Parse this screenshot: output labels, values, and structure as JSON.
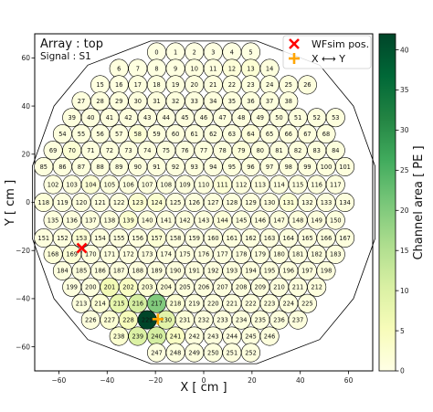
{
  "chart_data": {
    "type": "heatmap",
    "title": "",
    "annotation_title": "Array : top",
    "annotation_subtitle": "Signal : S1",
    "xlabel": "X [ cm ]",
    "ylabel": "Y [ cm ]",
    "xlim": [
      -70,
      70
    ],
    "ylim": [
      -70,
      70
    ],
    "xticks": [
      "−60",
      "−40",
      "−20",
      "0",
      "20",
      "40",
      "60"
    ],
    "xtick_values": [
      -60,
      -40,
      -20,
      0,
      20,
      40,
      60
    ],
    "yticks": [
      "−60",
      "−40",
      "−20",
      "0",
      "20",
      "40",
      "60"
    ],
    "ytick_values": [
      -60,
      -40,
      -20,
      0,
      20,
      40,
      60
    ],
    "colorbar_label": "Channel area [ PE ]",
    "colorbar_range": [
      0,
      42
    ],
    "colorbar_ticks": [
      "0",
      "5",
      "10",
      "15",
      "20",
      "25",
      "30",
      "35",
      "40"
    ],
    "colorbar_tick_values": [
      0,
      5,
      10,
      15,
      20,
      25,
      30,
      35,
      40
    ],
    "colormap": [
      "#ffffe5",
      "#f7fcb9",
      "#d9f0a3",
      "#addd8e",
      "#78c679",
      "#41ab5d",
      "#238443",
      "#006837",
      "#004529"
    ],
    "legend_position": "top-right",
    "legend": [
      {
        "label": "WFsim pos.",
        "marker": "x",
        "color": "#ff0000"
      },
      {
        "label": "X ⟷ Y",
        "marker": "plus",
        "color": "#ffa500"
      }
    ],
    "markers": [
      {
        "name": "WFsim pos.",
        "x": -50.5,
        "y": -19.0
      },
      {
        "name": "X ⟷ Y",
        "x": -19.0,
        "y": -48.5
      }
    ],
    "rows": [
      {
        "y": 62.4,
        "x_start": -19.5,
        "ids": [
          0,
          1,
          2,
          3,
          4,
          5
        ]
      },
      {
        "y": 55.6,
        "x_start": -35.1,
        "ids": [
          6,
          7,
          8,
          9,
          10,
          11,
          12,
          13,
          14
        ]
      },
      {
        "y": 48.8,
        "x_start": -42.9,
        "ids": [
          15,
          16,
          17,
          18,
          19,
          20,
          21,
          22,
          23,
          24,
          25,
          26
        ]
      },
      {
        "y": 42.0,
        "x_start": -50.7,
        "ids": [
          27,
          28,
          29,
          30,
          31,
          32,
          33,
          34,
          35,
          36,
          37,
          38
        ]
      },
      {
        "y": 35.2,
        "x_start": -54.6,
        "ids": [
          39,
          40,
          41,
          42,
          43,
          44,
          45,
          46,
          47,
          48,
          49,
          50,
          51,
          52,
          53
        ]
      },
      {
        "y": 28.4,
        "x_start": -58.5,
        "ids": [
          54,
          55,
          56,
          57,
          58,
          59,
          60,
          61,
          62,
          63,
          64,
          65,
          66,
          67,
          68
        ]
      },
      {
        "y": 21.6,
        "x_start": -62.4,
        "ids": [
          69,
          70,
          71,
          72,
          73,
          74,
          75,
          76,
          77,
          78,
          79,
          80,
          81,
          82,
          83,
          84
        ]
      },
      {
        "y": 14.8,
        "x_start": -66.3,
        "ids": [
          85,
          86,
          87,
          88,
          89,
          90,
          91,
          92,
          93,
          94,
          95,
          96,
          97,
          98,
          99,
          100,
          101
        ]
      },
      {
        "y": 7.4,
        "x_start": -62.4,
        "ids": [
          102,
          103,
          104,
          105,
          106,
          107,
          108,
          109,
          110,
          111,
          112,
          113,
          114,
          115,
          116,
          117
        ]
      },
      {
        "y": 0.0,
        "x_start": -66.3,
        "ids": [
          118,
          119,
          120,
          121,
          122,
          123,
          124,
          125,
          126,
          127,
          128,
          129,
          130,
          131,
          132,
          133,
          134
        ]
      },
      {
        "y": -7.4,
        "x_start": -62.4,
        "ids": [
          135,
          136,
          137,
          138,
          139,
          140,
          141,
          142,
          143,
          144,
          145,
          146,
          147,
          148,
          149,
          150
        ]
      },
      {
        "y": -14.8,
        "x_start": -66.3,
        "ids": [
          151,
          152,
          153,
          154,
          155,
          156,
          157,
          158,
          159,
          160,
          161,
          162,
          163,
          164,
          165,
          166,
          167
        ]
      },
      {
        "y": -21.6,
        "x_start": -62.4,
        "ids": [
          168,
          169,
          170,
          171,
          172,
          173,
          174,
          175,
          176,
          177,
          178,
          179,
          180,
          181,
          182,
          183
        ]
      },
      {
        "y": -28.4,
        "x_start": -58.5,
        "ids": [
          184,
          185,
          186,
          187,
          188,
          189,
          190,
          191,
          192,
          193,
          194,
          195,
          196,
          197,
          198
        ]
      },
      {
        "y": -35.2,
        "x_start": -54.6,
        "ids": [
          199,
          200,
          201,
          202,
          203,
          204,
          205,
          206,
          207,
          208,
          209,
          210,
          211,
          212
        ]
      },
      {
        "y": -42.0,
        "x_start": -50.7,
        "ids": [
          213,
          214,
          215,
          216,
          217,
          218,
          219,
          220,
          221,
          222,
          223,
          224,
          225
        ]
      },
      {
        "y": -48.8,
        "x_start": -46.8,
        "ids": [
          226,
          227,
          228,
          229,
          230,
          231,
          232,
          233,
          234,
          235,
          236,
          237
        ]
      },
      {
        "y": -55.6,
        "x_start": -35.1,
        "ids": [
          238,
          239,
          240,
          241,
          242,
          243,
          244,
          245,
          246
        ]
      },
      {
        "y": -62.4,
        "x_start": -19.5,
        "ids": [
          247,
          248,
          249,
          250,
          251,
          252
        ]
      }
    ],
    "pitch": 7.8,
    "values": {
      "0": 0.5,
      "1": 0.5,
      "2": 0.5,
      "3": 0.5,
      "4": 0.5,
      "5": 0.5,
      "6": 0.8,
      "7": 0.6,
      "8": 0.6,
      "9": 0.6,
      "10": 0.8,
      "11": 0.8,
      "12": 1.5,
      "13": 2.0,
      "14": 1.0,
      "15": 0.6,
      "16": 0.6,
      "17": 1.0,
      "18": 1.0,
      "19": 1.0,
      "20": 1.0,
      "21": 1.0,
      "22": 1.0,
      "23": 1.0,
      "24": 1.0,
      "25": 1.0,
      "26": 1.0,
      "27": 1.0,
      "28": 1.0,
      "29": 1.0,
      "30": 1.0,
      "31": 1.0,
      "32": 1.0,
      "33": 1.0,
      "34": 1.0,
      "35": 1.0,
      "36": 1.0,
      "37": 1.0,
      "38": 1.0,
      "39": 1.0,
      "40": 1.0,
      "41": 1.0,
      "42": 1.0,
      "43": 1.0,
      "44": 1.0,
      "45": 1.0,
      "46": 1.0,
      "47": 1.0,
      "48": 1.0,
      "49": 1.0,
      "50": 1.0,
      "51": 1.0,
      "52": 1.0,
      "53": 1.0,
      "54": 1.0,
      "55": 1.0,
      "56": 1.0,
      "57": 1.0,
      "58": 2.0,
      "59": 1.0,
      "60": 1.0,
      "61": 1.0,
      "62": 1.0,
      "63": 1.0,
      "64": 1.5,
      "65": 1.0,
      "66": 1.0,
      "67": 1.0,
      "68": 1.0,
      "69": 1.0,
      "70": 2.0,
      "71": 1.0,
      "72": 1.0,
      "73": 1.0,
      "74": 1.0,
      "75": 1.0,
      "76": 1.0,
      "77": 1.0,
      "78": 1.0,
      "79": 1.5,
      "80": 1.0,
      "81": 1.0,
      "82": 1.0,
      "83": 1.0,
      "84": 1.0,
      "85": 1.0,
      "86": 1.0,
      "87": 1.0,
      "88": 1.0,
      "89": 1.0,
      "90": 1.0,
      "91": 1.0,
      "92": 1.0,
      "93": 1.0,
      "94": 1.0,
      "95": 1.0,
      "96": 1.0,
      "97": 1.0,
      "98": 1.0,
      "99": 1.0,
      "100": 1.0,
      "101": 1.0,
      "102": 1.0,
      "103": 1.0,
      "104": 2.0,
      "105": 1.0,
      "106": 1.0,
      "107": 1.0,
      "108": 1.0,
      "109": 1.0,
      "110": 1.0,
      "111": 2.0,
      "112": 1.0,
      "113": 1.0,
      "114": 1.0,
      "115": 1.0,
      "116": 1.0,
      "117": 1.0,
      "118": 1.5,
      "119": 1.0,
      "120": 1.0,
      "121": 1.0,
      "122": 1.0,
      "123": 2.5,
      "124": 2.5,
      "125": 1.0,
      "126": 1.0,
      "127": 1.0,
      "128": 1.0,
      "129": 1.0,
      "130": 1.0,
      "131": 2.0,
      "132": 1.0,
      "133": 1.0,
      "134": 1.0,
      "135": 1.0,
      "136": 1.0,
      "137": 1.0,
      "138": 1.0,
      "139": 2.5,
      "140": 1.0,
      "141": 1.0,
      "142": 1.0,
      "143": 1.0,
      "144": 1.5,
      "145": 1.0,
      "146": 1.0,
      "147": 1.0,
      "148": 1.0,
      "149": 1.0,
      "150": 1.0,
      "151": 1.0,
      "152": 1.0,
      "153": 2.0,
      "154": 1.0,
      "155": 1.0,
      "156": 1.0,
      "157": 2.0,
      "158": 1.0,
      "159": 1.0,
      "160": 1.0,
      "161": 1.0,
      "162": 1.0,
      "163": 1.0,
      "164": 1.0,
      "165": 1.0,
      "166": 1.0,
      "167": 1.0,
      "168": 1.5,
      "169": 2.0,
      "170": 1.0,
      "171": 1.0,
      "172": 1.0,
      "173": 1.0,
      "174": 1.0,
      "175": 1.0,
      "176": 1.0,
      "177": 1.0,
      "178": 1.0,
      "179": 1.0,
      "180": 1.0,
      "181": 1.0,
      "182": 1.0,
      "183": 1.0,
      "184": 1.0,
      "185": 1.0,
      "186": 1.0,
      "187": 1.0,
      "188": 1.0,
      "189": 1.0,
      "190": 1.0,
      "191": 1.0,
      "192": 1.0,
      "193": 1.0,
      "194": 1.0,
      "195": 1.0,
      "196": 1.0,
      "197": 1.0,
      "198": 1.0,
      "199": 1.0,
      "200": 1.0,
      "201": 6.0,
      "202": 4.0,
      "203": 2.0,
      "204": 1.5,
      "205": 1.0,
      "206": 1.0,
      "207": 1.0,
      "208": 1.0,
      "209": 1.0,
      "210": 1.0,
      "211": 1.0,
      "212": 1.0,
      "213": 1.0,
      "214": 2.0,
      "215": 8.0,
      "216": 11.0,
      "217": 20.0,
      "218": 2.0,
      "219": 1.0,
      "220": 1.0,
      "221": 1.0,
      "222": 1.0,
      "223": 1.0,
      "224": 1.0,
      "225": 1.0,
      "226": 1.0,
      "227": 2.0,
      "228": 5.0,
      "229": 42.0,
      "230": 9.0,
      "231": 1.5,
      "232": 1.0,
      "233": 1.0,
      "234": 1.0,
      "235": 1.0,
      "236": 1.0,
      "237": 1.0,
      "238": 2.5,
      "239": 10.0,
      "240": 11.0,
      "241": 4.0,
      "242": 1.0,
      "243": 1.0,
      "244": 1.0,
      "245": 1.0,
      "246": 1.0,
      "247": 1.0,
      "248": 1.0,
      "249": 1.0,
      "250": 1.0,
      "251": 1.0,
      "252": 1.0
    }
  }
}
